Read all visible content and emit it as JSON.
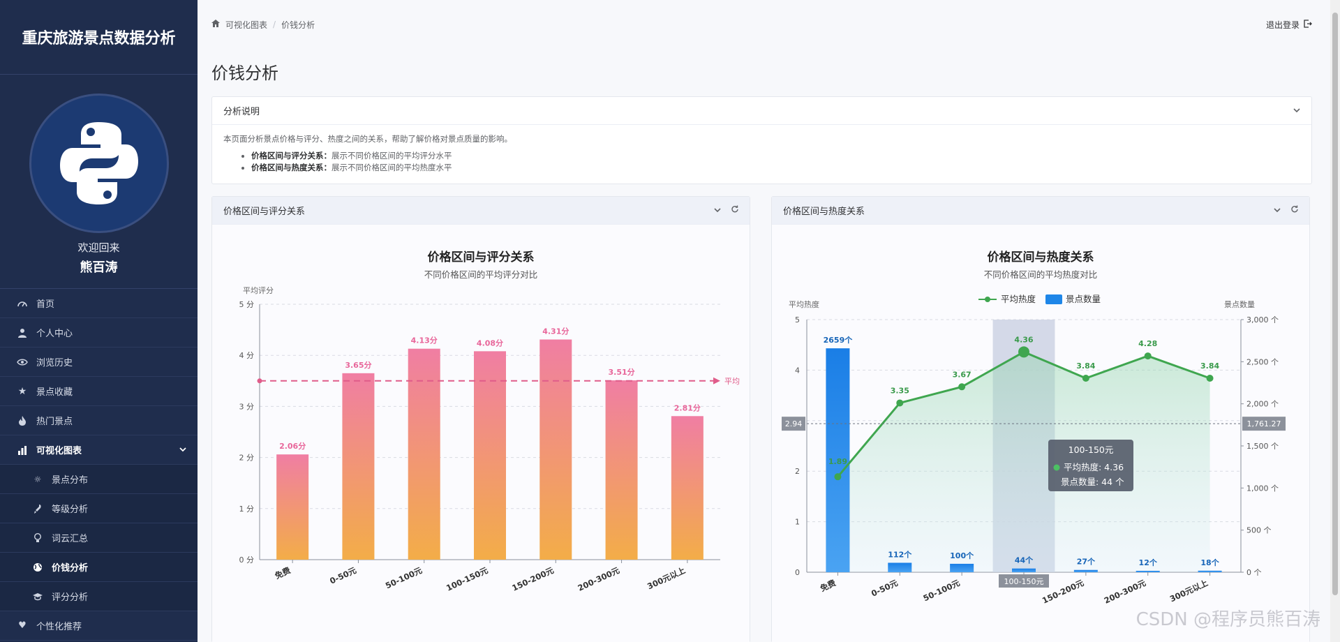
{
  "app": {
    "title": "重庆旅游景点数据分析"
  },
  "user": {
    "welcome": "欢迎回来",
    "name": "熊百涛"
  },
  "sidebar": {
    "items": [
      {
        "label": "首页",
        "icon": "gauge-icon"
      },
      {
        "label": "个人中心",
        "icon": "user-icon"
      },
      {
        "label": "浏览历史",
        "icon": "eye-icon"
      },
      {
        "label": "景点收藏",
        "icon": "star-icon"
      },
      {
        "label": "热门景点",
        "icon": "fire-icon"
      },
      {
        "label": "可视化图表",
        "icon": "bar-chart-icon"
      },
      {
        "label": "景点分布",
        "icon": "sun-icon"
      },
      {
        "label": "等级分析",
        "icon": "rocket-icon"
      },
      {
        "label": "词云汇总",
        "icon": "bulb-icon"
      },
      {
        "label": "价钱分析",
        "icon": "globe-icon"
      },
      {
        "label": "评分分析",
        "icon": "graduation-icon"
      },
      {
        "label": "个性化推荐",
        "icon": "heart-icon"
      }
    ]
  },
  "breadcrumb": {
    "home": "可视化图表",
    "current": "价钱分析"
  },
  "header": {
    "logout": "退出登录"
  },
  "page": {
    "title": "价钱分析"
  },
  "description": {
    "title": "分析说明",
    "intro": "本页面分析景点价格与评分、热度之间的关系，帮助了解价格对景点质量的影响。",
    "bullets": [
      {
        "key": "价格区间与评分关系：",
        "text": "展示不同价格区间的平均评分水平"
      },
      {
        "key": "价格区间与热度关系：",
        "text": "展示不同价格区间的平均热度水平"
      }
    ]
  },
  "cards": {
    "rating_title": "价格区间与评分关系",
    "heat_title": "价格区间与热度关系"
  },
  "watermark": "CSDN @程序员熊百涛",
  "colors": {
    "sidebar": "#1f2d4d",
    "green": "#3fa64f",
    "blue": "#1e86e8",
    "pink": "#f07ea3",
    "orange": "#f3ad48"
  },
  "chart_data": [
    {
      "type": "bar",
      "title": "价格区间与评分关系",
      "subtitle": "不同价格区间的平均评分对比",
      "ylabel": "平均评分",
      "ylim": [
        0,
        5
      ],
      "yticks": [
        "0 分",
        "1 分",
        "2 分",
        "3 分",
        "4 分",
        "5 分"
      ],
      "categories": [
        "免费",
        "0-50元",
        "50-100元",
        "100-150元",
        "150-200元",
        "200-300元",
        "300元以上"
      ],
      "values": [
        2.06,
        3.65,
        4.13,
        4.08,
        4.31,
        3.51,
        2.81
      ],
      "value_labels": [
        "2.06分",
        "3.65分",
        "4.13分",
        "4.08分",
        "4.31分",
        "3.51分",
        "2.81分"
      ],
      "avg_line": {
        "value": 3.5,
        "label": "平均"
      },
      "grid": true
    },
    {
      "type": "bar+line",
      "title": "价格区间与热度关系",
      "subtitle": "不同价格区间的平均热度对比",
      "legend": [
        "平均热度",
        "景点数量"
      ],
      "legend_position": "top-center",
      "ylabel_left": "平均热度",
      "ylabel_right": "景点数量",
      "ylim_left": [
        0,
        5
      ],
      "ylim_right": [
        0,
        3000
      ],
      "yticks_left": [
        "0",
        "1",
        "2",
        "3",
        "4",
        "5"
      ],
      "yticks_right": [
        "0 个",
        "500 个",
        "1,000 个",
        "1,500 个",
        "2,000 个",
        "2,500 个",
        "3,000 个"
      ],
      "categories": [
        "免费",
        "0-50元",
        "50-100元",
        "100-150元",
        "150-200元",
        "200-300元",
        "300元以上"
      ],
      "series": [
        {
          "name": "平均热度",
          "type": "line",
          "values": [
            1.89,
            3.35,
            3.67,
            4.36,
            3.84,
            4.28,
            3.84
          ],
          "labels": [
            "1.89",
            "3.35",
            "3.67",
            "4.36",
            "3.84",
            "4.28",
            "3.84"
          ]
        },
        {
          "name": "景点数量",
          "type": "bar",
          "values": [
            2659,
            112,
            100,
            44,
            27,
            12,
            18
          ],
          "labels": [
            "2659个",
            "112个",
            "100个",
            "44个",
            "27个",
            "12个",
            "18个"
          ]
        }
      ],
      "crosshair": {
        "left_value": "2.94",
        "right_value": "1,761.27",
        "category": "100-150元"
      },
      "tooltip": {
        "title": "100-150元",
        "line1": "平均热度: 4.36",
        "line2": "景点数量: 44 个"
      }
    }
  ]
}
